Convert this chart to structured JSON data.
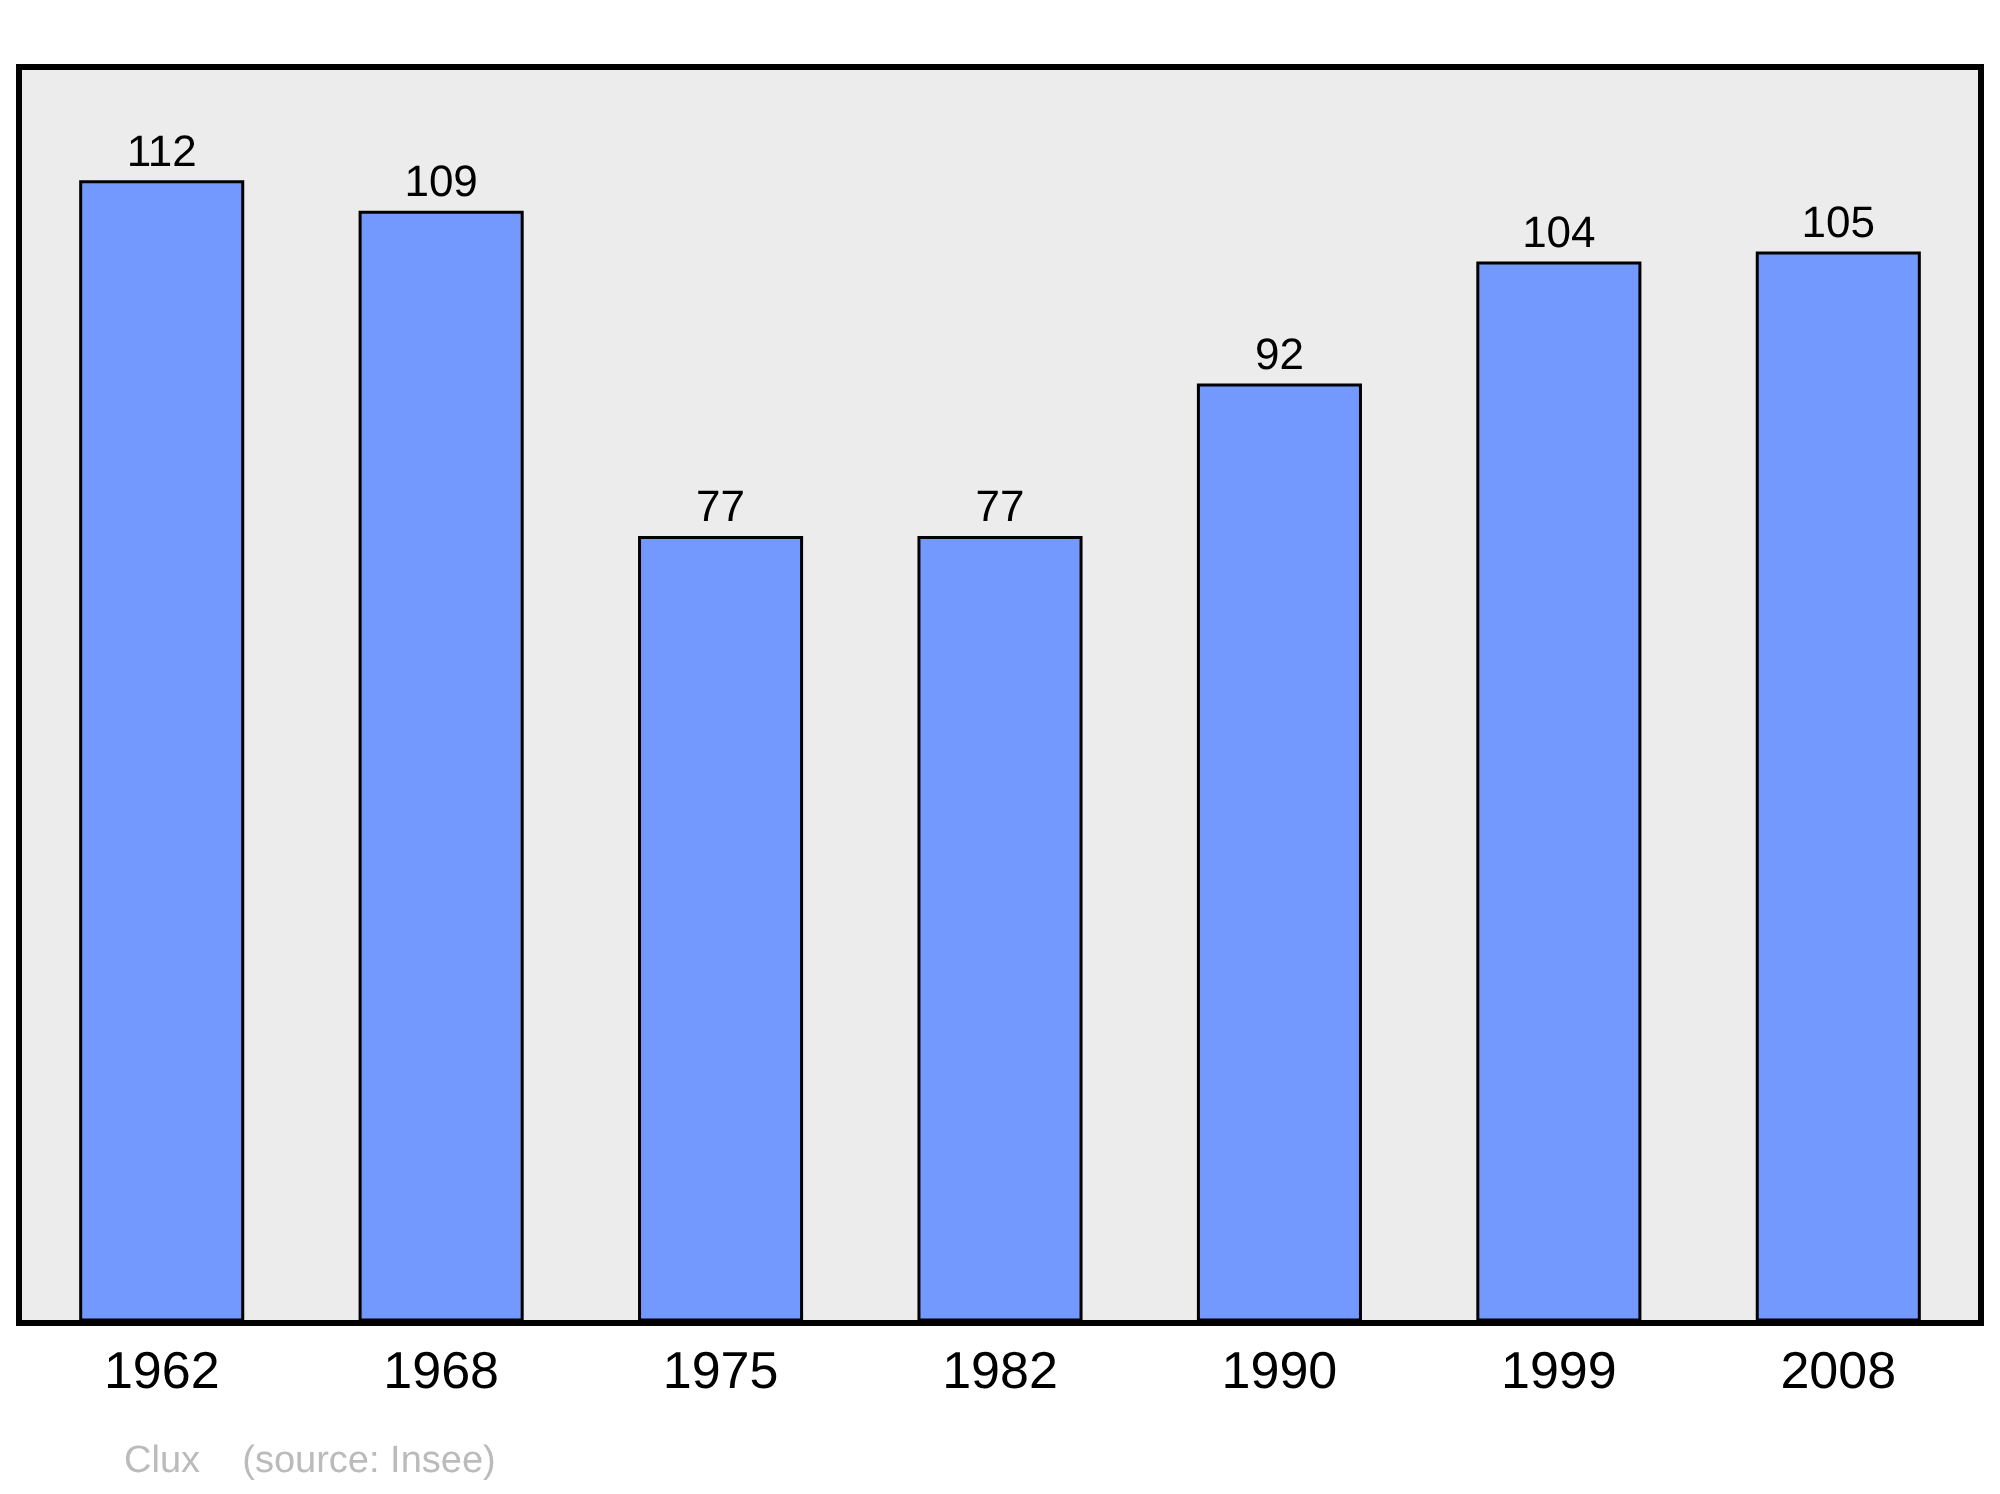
{
  "chart_data": {
    "type": "bar",
    "categories": [
      "1962",
      "1968",
      "1975",
      "1982",
      "1990",
      "1999",
      "2008"
    ],
    "values": [
      112,
      109,
      77,
      77,
      92,
      104,
      105
    ],
    "color": "#7399ff",
    "ylim": [
      0,
      123
    ],
    "tick_labels": "x",
    "data_labels": true,
    "grid": false,
    "annotations": [
      "Clux    (source: Insee)"
    ]
  }
}
